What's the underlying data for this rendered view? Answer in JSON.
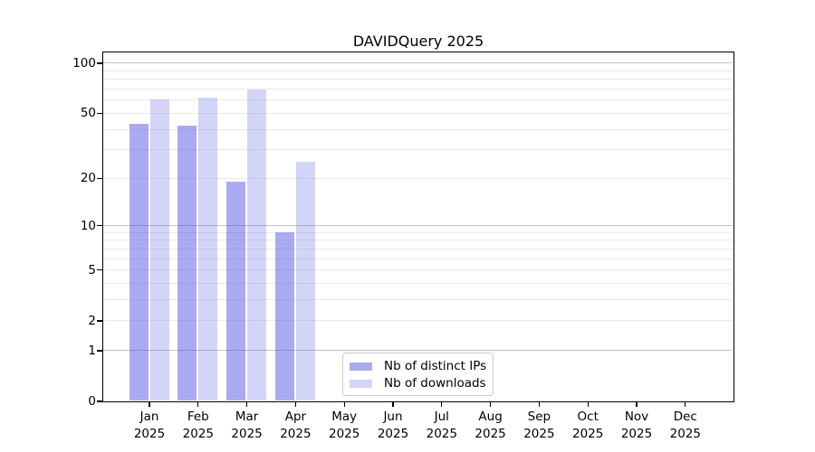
{
  "chart_data": {
    "type": "bar",
    "title": "DAVIDQuery 2025",
    "categories": [
      "Jan",
      "Feb",
      "Mar",
      "Apr",
      "May",
      "Jun",
      "Jul",
      "Aug",
      "Sep",
      "Oct",
      "Nov",
      "Dec"
    ],
    "x_axis": {
      "tick_label_line2": "2025"
    },
    "series": [
      {
        "name": "Nb of distinct IPs",
        "key": "ips",
        "color": "rgba(85,85,230,0.5)",
        "values": [
          43,
          42,
          19,
          9,
          null,
          null,
          null,
          null,
          null,
          null,
          null,
          null
        ]
      },
      {
        "name": "Nb of downloads",
        "key": "downloads",
        "color": "rgba(85,85,230,0.25)",
        "values": [
          60,
          62,
          69,
          25,
          null,
          null,
          null,
          null,
          null,
          null,
          null,
          null
        ]
      }
    ],
    "y_axis": {
      "scale": "log10(value+1)",
      "tick_values": [
        0,
        1,
        2,
        5,
        10,
        20,
        50,
        100
      ],
      "tick_labels": [
        "0",
        "1",
        "2",
        "5",
        "10",
        "20",
        "50",
        "100"
      ],
      "ylim": [
        0,
        115
      ]
    },
    "grid": {
      "orientation": "horizontal",
      "major_lines": [
        1,
        10,
        100
      ],
      "minor_lines": [
        2,
        3,
        4,
        5,
        6,
        7,
        8,
        9,
        20,
        30,
        40,
        50,
        60,
        70,
        80,
        90
      ]
    },
    "legend_position": "lower center"
  },
  "colors": {
    "bar_base": "#5555E6",
    "ips_fill": "rgba(85,85,230,0.5)",
    "downloads_fill": "rgba(85,85,230,0.25)",
    "grid_major": "#c3c3c3",
    "grid_minor": "#eaeaea",
    "spine": "#000000",
    "background": "#ffffff"
  }
}
